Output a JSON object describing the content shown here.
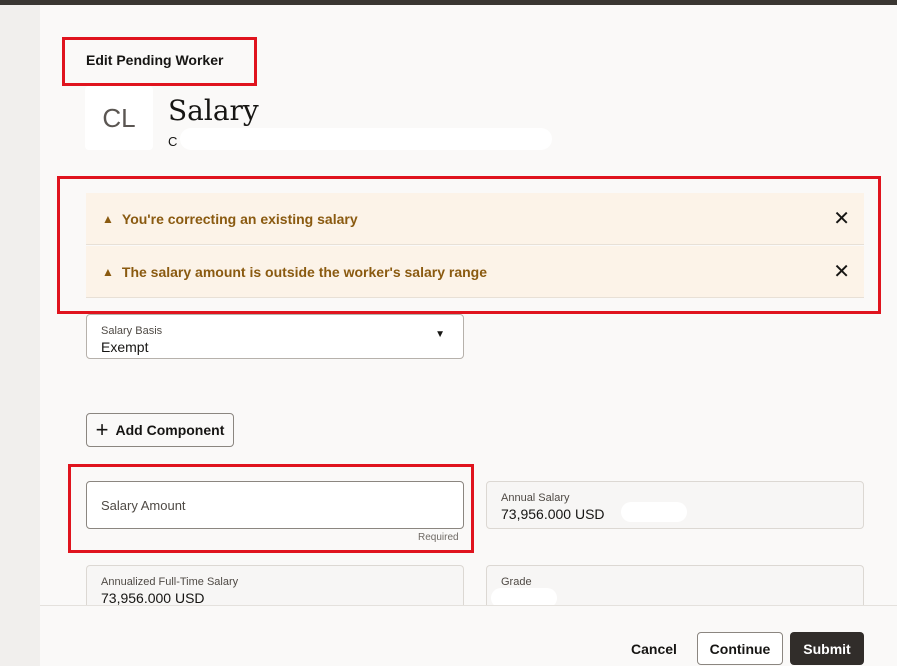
{
  "header": {
    "breadcrumb": "Edit Pending Worker",
    "avatar_initials": "CL",
    "title": "Salary",
    "subtitle_visible": "C"
  },
  "messages": [
    {
      "icon": "warning-icon",
      "text": "You're correcting an existing salary",
      "close": "✕"
    },
    {
      "icon": "warning-icon",
      "text": "The salary amount is outside the worker's salary range",
      "close": "✕"
    }
  ],
  "form": {
    "salary_basis": {
      "label": "Salary Basis",
      "value": "Exempt"
    },
    "add_component": "Add Component",
    "salary_amount": {
      "placeholder": "Salary Amount",
      "helper": "Required"
    },
    "annual_salary": {
      "label": "Annual Salary",
      "value": "73,956.000 USD"
    },
    "annualized_full_time_salary": {
      "label": "Annualized Full-Time Salary",
      "value": "73,956.000 USD"
    },
    "grade": {
      "label": "Grade"
    }
  },
  "footer": {
    "cancel": "Cancel",
    "continue": "Continue",
    "submit": "Submit"
  },
  "colors": {
    "highlight": "#e0141e",
    "warning_text": "#8a5a10",
    "warning_bg": "#fcf3e8",
    "primary_button": "#312d2a"
  }
}
